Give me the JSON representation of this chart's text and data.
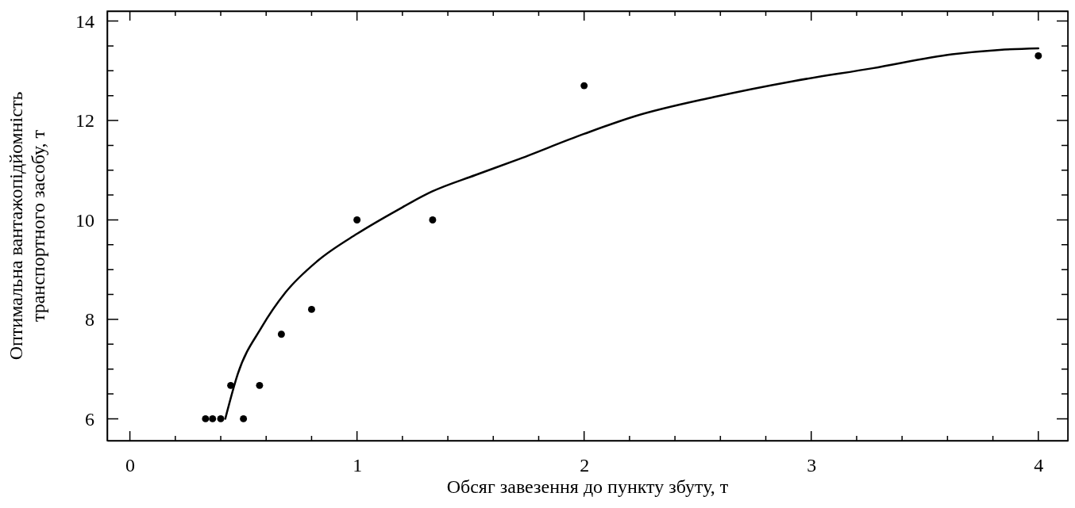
{
  "chart_data": {
    "type": "scatter",
    "xlabel": "Обсяг завезення до пункту збуту, т",
    "ylabel": "Оптимальна вантажопідйомність\nтранспортного засобу, т",
    "xlim": [
      -0.1,
      4.13
    ],
    "ylim": [
      5.56,
      14.2
    ],
    "xticks": [
      0,
      {
        "value": 0.2,
        "label": null
      },
      {
        "value": 0.4,
        "label": null
      },
      {
        "value": 0.6,
        "label": null
      },
      {
        "value": 0.8,
        "label": null
      },
      1,
      {
        "value": 1.2,
        "label": null
      },
      {
        "value": 1.4,
        "label": null
      },
      {
        "value": 1.6,
        "label": null
      },
      {
        "value": 1.8,
        "label": null
      },
      2,
      {
        "value": 2.2,
        "label": null
      },
      {
        "value": 2.4,
        "label": null
      },
      {
        "value": 2.6,
        "label": null
      },
      {
        "value": 2.8,
        "label": null
      },
      3,
      {
        "value": 3.2,
        "label": null
      },
      {
        "value": 3.4,
        "label": null
      },
      {
        "value": 3.6,
        "label": null
      },
      {
        "value": 3.8,
        "label": null
      },
      4
    ],
    "yticks": [
      6,
      {
        "value": 6.5,
        "label": null
      },
      {
        "value": 7,
        "label": null
      },
      {
        "value": 7.5,
        "label": null
      },
      8,
      {
        "value": 8.5,
        "label": null
      },
      {
        "value": 9,
        "label": null
      },
      {
        "value": 9.5,
        "label": null
      },
      10,
      {
        "value": 10.5,
        "label": null
      },
      {
        "value": 11,
        "label": null
      },
      {
        "value": 11.5,
        "label": null
      },
      12,
      {
        "value": 12.5,
        "label": null
      },
      {
        "value": 13,
        "label": null
      },
      {
        "value": 13.5,
        "label": null
      },
      14
    ],
    "grid": false,
    "series": [
      {
        "marker": "circle",
        "color": "#000000",
        "x": [
          0.333,
          0.364,
          0.4,
          0.444,
          0.5,
          0.571,
          0.667,
          0.8,
          1,
          1.333,
          2,
          4
        ],
        "values": [
          6,
          6,
          6,
          6.67,
          6,
          6.67,
          7.7,
          8.2,
          10,
          10,
          12.7,
          13.3
        ]
      },
      {
        "type": "line",
        "marker": "none",
        "color": "#000000",
        "x": [
          0.42,
          0.475,
          0.58,
          0.685,
          0.825,
          1,
          1.175,
          1.33,
          1.52,
          1.7,
          2,
          2.22,
          2.57,
          2.92,
          3.27,
          3.62,
          3.83,
          4
        ],
        "values": [
          6,
          6.9,
          7.84,
          8.54,
          9.17,
          9.72,
          10.19,
          10.57,
          10.9,
          11.2,
          11.73,
          12.08,
          12.47,
          12.79,
          13.05,
          13.33,
          13.42,
          13.45
        ]
      }
    ]
  }
}
